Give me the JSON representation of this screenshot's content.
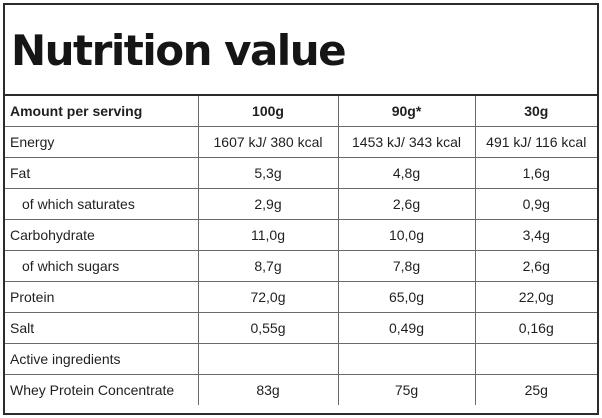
{
  "title": "Nutrition value",
  "header": {
    "label": "Amount per serving",
    "columns": [
      "100g",
      "90g*",
      "30g"
    ]
  },
  "rows": [
    {
      "label": "Energy",
      "values": [
        "1607 kJ/ 380 kcal",
        "1453 kJ/ 343 kcal",
        "491 kJ/ 116 kcal"
      ]
    },
    {
      "label": "Fat",
      "values": [
        "5,3g",
        "4,8g",
        "1,6g"
      ]
    },
    {
      "label": "of which saturates",
      "values": [
        "2,9g",
        "2,6g",
        "0,9g"
      ]
    },
    {
      "label": "Carbohydrate",
      "values": [
        "11,0g",
        "10,0g",
        "3,4g"
      ]
    },
    {
      "label": "of which sugars",
      "values": [
        "8,7g",
        "7,8g",
        "2,6g"
      ]
    },
    {
      "label": "Protein",
      "values": [
        "72,0g",
        "65,0g",
        "22,0g"
      ]
    },
    {
      "label": "Salt",
      "values": [
        "0,55g",
        "0,49g",
        "0,16g"
      ]
    },
    {
      "label": "Active ingredients",
      "values": [
        "",
        "",
        ""
      ]
    },
    {
      "label": "Whey Protein Concentrate",
      "values": [
        "83g",
        "75g",
        "25g"
      ]
    }
  ]
}
